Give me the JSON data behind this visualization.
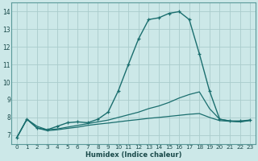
{
  "xlabel": "Humidex (Indice chaleur)",
  "bg_color": "#cce8e8",
  "grid_color": "#aacccc",
  "line_color": "#1a6e6e",
  "xlim": [
    -0.5,
    23.5
  ],
  "ylim": [
    6.5,
    14.5
  ],
  "xticks": [
    0,
    1,
    2,
    3,
    4,
    5,
    6,
    7,
    8,
    9,
    10,
    11,
    12,
    13,
    14,
    15,
    16,
    17,
    18,
    19,
    20,
    21,
    22,
    23
  ],
  "yticks": [
    7,
    8,
    9,
    10,
    11,
    12,
    13,
    14
  ],
  "series": [
    {
      "x": [
        0,
        1,
        2,
        3,
        4,
        5,
        6,
        7,
        8,
        9,
        10,
        11,
        12,
        13,
        14,
        15,
        16,
        17,
        18,
        19,
        20,
        21,
        22,
        23
      ],
      "y": [
        6.85,
        7.9,
        7.4,
        7.3,
        7.5,
        7.7,
        7.75,
        7.7,
        7.9,
        8.3,
        9.5,
        11.0,
        12.45,
        13.55,
        13.65,
        13.9,
        14.0,
        13.55,
        11.6,
        9.5,
        7.9,
        7.8,
        7.8,
        7.85
      ],
      "marker": true
    },
    {
      "x": [
        0,
        1,
        2,
        3,
        4,
        5,
        6,
        7,
        8,
        9,
        10,
        11,
        12,
        13,
        14,
        15,
        16,
        17,
        18,
        19,
        20,
        21,
        22,
        23
      ],
      "y": [
        6.85,
        7.9,
        7.5,
        7.3,
        7.35,
        7.45,
        7.55,
        7.65,
        7.75,
        7.85,
        8.0,
        8.15,
        8.3,
        8.5,
        8.65,
        8.85,
        9.1,
        9.3,
        9.45,
        8.5,
        7.9,
        7.8,
        7.75,
        7.85
      ],
      "marker": false
    },
    {
      "x": [
        0,
        1,
        2,
        3,
        4,
        5,
        6,
        7,
        8,
        9,
        10,
        11,
        12,
        13,
        14,
        15,
        16,
        17,
        18,
        19,
        20,
        21,
        22,
        23
      ],
      "y": [
        6.85,
        7.9,
        7.4,
        7.25,
        7.3,
        7.38,
        7.45,
        7.55,
        7.62,
        7.68,
        7.75,
        7.82,
        7.88,
        7.95,
        8.0,
        8.06,
        8.12,
        8.18,
        8.22,
        8.0,
        7.82,
        7.78,
        7.75,
        7.82
      ],
      "marker": false
    }
  ]
}
